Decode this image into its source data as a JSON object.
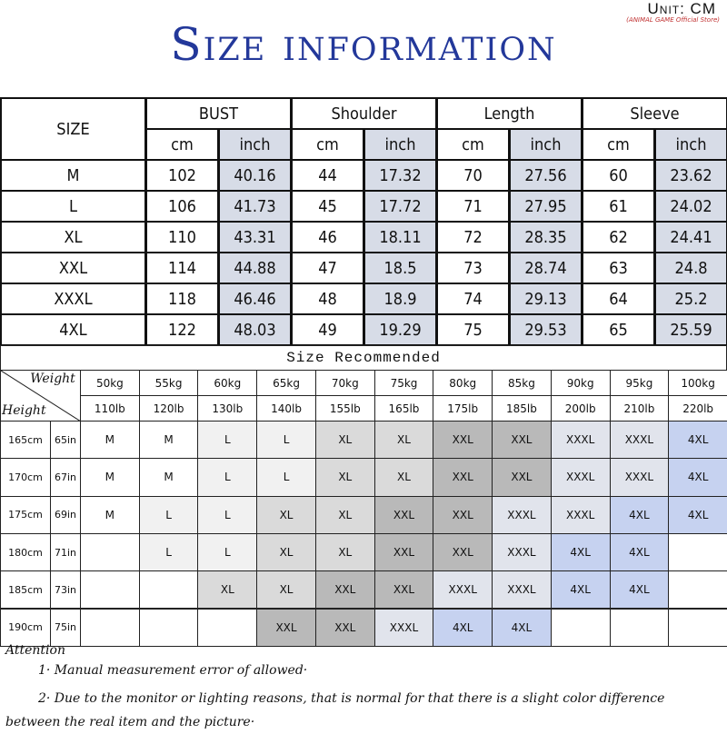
{
  "header": {
    "title": "Size information",
    "unit": "Unit: CM",
    "store": "(ANIMAL GAME Official Store)"
  },
  "size_table": {
    "size_label": "SIZE",
    "groups": [
      "BUST",
      "Shoulder",
      "Length",
      "Sleeve"
    ],
    "units": [
      "cm",
      "inch"
    ],
    "rows": [
      [
        "M",
        "102",
        "40.16",
        "44",
        "17.32",
        "70",
        "27.56",
        "60",
        "23.62"
      ],
      [
        "L",
        "106",
        "41.73",
        "45",
        "17.72",
        "71",
        "27.95",
        "61",
        "24.02"
      ],
      [
        "XL",
        "110",
        "43.31",
        "46",
        "18.11",
        "72",
        "28.35",
        "62",
        "24.41"
      ],
      [
        "XXL",
        "114",
        "44.88",
        "47",
        "18.5",
        "73",
        "28.74",
        "63",
        "24.8"
      ],
      [
        "XXXL",
        "118",
        "46.46",
        "48",
        "18.9",
        "74",
        "29.13",
        "64",
        "25.2"
      ],
      [
        "4XL",
        "122",
        "48.03",
        "49",
        "19.29",
        "75",
        "29.53",
        "65",
        "25.59"
      ]
    ],
    "unit_color": "#d7dce7"
  },
  "recommend": {
    "title": "Size Recommended",
    "weight_label": "Weight",
    "height_label": "Height",
    "kg": [
      "50kg",
      "55kg",
      "60kg",
      "65kg",
      "70kg",
      "75kg",
      "80kg",
      "85kg",
      "90kg",
      "95kg",
      "100kg"
    ],
    "lb": [
      "110lb",
      "120lb",
      "130lb",
      "140lb",
      "155lb",
      "165lb",
      "175lb",
      "185lb",
      "200lb",
      "210lb",
      "220lb"
    ],
    "rows": [
      {
        "cm": "165cm",
        "in": "65in",
        "sizes": [
          "M",
          "M",
          "L",
          "L",
          "XL",
          "XL",
          "XXL",
          "XXL",
          "XXXL",
          "XXXL",
          "4XL"
        ]
      },
      {
        "cm": "170cm",
        "in": "67in",
        "sizes": [
          "M",
          "M",
          "L",
          "L",
          "XL",
          "XL",
          "XXL",
          "XXL",
          "XXXL",
          "XXXL",
          "4XL"
        ]
      },
      {
        "cm": "175cm",
        "in": "69in",
        "sizes": [
          "M",
          "L",
          "L",
          "XL",
          "XL",
          "XXL",
          "XXL",
          "XXXL",
          "XXXL",
          "4XL",
          "4XL"
        ]
      },
      {
        "cm": "180cm",
        "in": "71in",
        "sizes": [
          null,
          "L",
          "L",
          "XL",
          "XL",
          "XXL",
          "XXL",
          "XXXL",
          "4XL",
          "4XL",
          null
        ]
      },
      {
        "cm": "185cm",
        "in": "73in",
        "sizes": [
          null,
          null,
          "XL",
          "XL",
          "XXL",
          "XXL",
          "XXXL",
          "XXXL",
          "4XL",
          "4XL",
          null
        ]
      },
      {
        "cm": "190cm",
        "in": "75in",
        "sizes": [
          null,
          null,
          null,
          "XXL",
          "XXL",
          "XXXL",
          "4XL",
          "4XL",
          null,
          null,
          null
        ]
      }
    ],
    "cell_colors": {
      "M": "#ffffff",
      "L": "#f1f1f1",
      "XL": "#dadada",
      "XXL": "#b9b9b9",
      "XXXL": "#e1e4ec",
      "4XL": "#c6d2f0"
    }
  },
  "notes": {
    "title": "Attention",
    "items": [
      "1·  Manual measurement error of allowed·",
      "2·  Due to the monitor or lighting reasons, that is normal for that there is a slight color difference between the real item and the picture·"
    ]
  }
}
